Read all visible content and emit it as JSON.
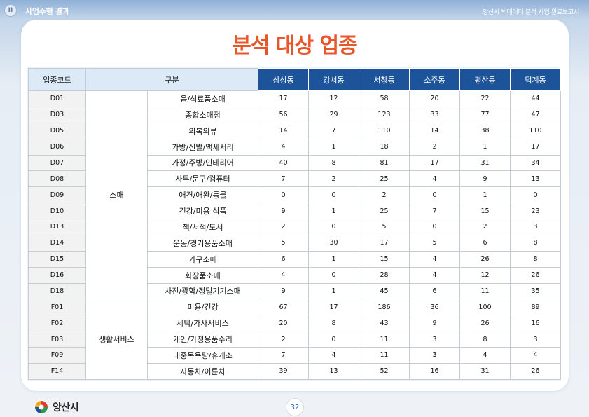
{
  "header": {
    "section_badge": "II",
    "section_title": "사업수행 결과",
    "report_title": "양산시 빅데이터 분석 사업 완료보고서"
  },
  "page_heading": "분석 대상 업종",
  "table": {
    "col_code": "업종코드",
    "col_category": "구분",
    "districts": [
      "삼성동",
      "강서동",
      "서창동",
      "소주동",
      "평산동",
      "덕계동"
    ],
    "groups": [
      {
        "label": "소매",
        "rows": [
          {
            "code": "D01",
            "name": "음/식료품소매",
            "values": [
              "17",
              "12",
              "58",
              "20",
              "22",
              "44"
            ]
          },
          {
            "code": "D03",
            "name": "종합소매점",
            "values": [
              "56",
              "29",
              "123",
              "33",
              "77",
              "47"
            ]
          },
          {
            "code": "D05",
            "name": "의복의류",
            "values": [
              "14",
              "7",
              "110",
              "14",
              "38",
              "110"
            ]
          },
          {
            "code": "D06",
            "name": "가방/신발/액세서리",
            "values": [
              "4",
              "1",
              "18",
              "2",
              "1",
              "17"
            ]
          },
          {
            "code": "D07",
            "name": "가정/주방/인테리어",
            "values": [
              "40",
              "8",
              "81",
              "17",
              "31",
              "34"
            ]
          },
          {
            "code": "D08",
            "name": "사무/문구/컴퓨터",
            "values": [
              "7",
              "2",
              "25",
              "4",
              "9",
              "13"
            ]
          },
          {
            "code": "D09",
            "name": "애견/애완/동물",
            "values": [
              "0",
              "0",
              "2",
              "0",
              "1",
              "0"
            ]
          },
          {
            "code": "D10",
            "name": "건강/미용 식품",
            "values": [
              "9",
              "1",
              "25",
              "7",
              "15",
              "23"
            ]
          },
          {
            "code": "D13",
            "name": "책/서적/도서",
            "values": [
              "2",
              "0",
              "5",
              "0",
              "2",
              "3"
            ]
          },
          {
            "code": "D14",
            "name": "운동/경기용품소매",
            "values": [
              "5",
              "30",
              "17",
              "5",
              "6",
              "8"
            ]
          },
          {
            "code": "D15",
            "name": "가구소매",
            "values": [
              "6",
              "1",
              "15",
              "4",
              "26",
              "8"
            ]
          },
          {
            "code": "D16",
            "name": "화장품소매",
            "values": [
              "4",
              "0",
              "28",
              "4",
              "12",
              "26"
            ]
          },
          {
            "code": "D18",
            "name": "사진/광학/정밀기기소매",
            "values": [
              "9",
              "1",
              "45",
              "6",
              "11",
              "35"
            ]
          }
        ]
      },
      {
        "label": "생활서비스",
        "rows": [
          {
            "code": "F01",
            "name": "미용/건강",
            "values": [
              "67",
              "17",
              "186",
              "36",
              "100",
              "89"
            ]
          },
          {
            "code": "F02",
            "name": "세탁/가사서비스",
            "values": [
              "20",
              "8",
              "43",
              "9",
              "26",
              "16"
            ]
          },
          {
            "code": "F03",
            "name": "개인/가정용품수리",
            "values": [
              "2",
              "0",
              "11",
              "3",
              "8",
              "3"
            ]
          },
          {
            "code": "F09",
            "name": "대중목욕탕/휴게소",
            "values": [
              "7",
              "4",
              "11",
              "3",
              "4",
              "4"
            ]
          },
          {
            "code": "F14",
            "name": "자동차/이륜차",
            "values": [
              "39",
              "13",
              "52",
              "16",
              "31",
              "26"
            ]
          }
        ]
      }
    ]
  },
  "footer": {
    "logo_text": "양산시",
    "page_number": "32"
  },
  "colors": {
    "heading": "#e8562a",
    "header_dark": "#1d5499",
    "header_light": "#dce9f6"
  }
}
